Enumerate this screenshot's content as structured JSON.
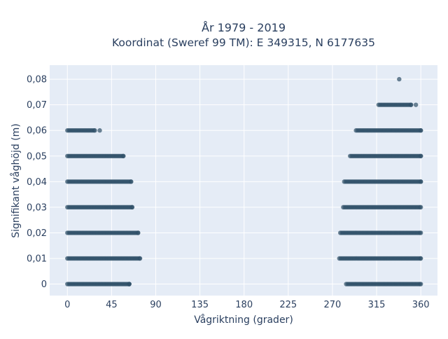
{
  "chart_data": {
    "type": "scatter",
    "title_line1": "År 1979 - 2019",
    "title_line2": "Koordinat (Sweref 99 TM): E 349315, N 6177635",
    "xlabel": "Vågriktning (grader)",
    "ylabel": "Signifikant våghöjd (m)",
    "xlim": [
      -18,
      377
    ],
    "ylim": [
      -0.0045,
      0.0855
    ],
    "x_ticks": [
      0,
      45,
      90,
      135,
      180,
      225,
      270,
      315,
      360
    ],
    "y_ticks": [
      0,
      0.01,
      0.02,
      0.03,
      0.04,
      0.05,
      0.06,
      0.07,
      0.08
    ],
    "y_tick_labels": [
      "0",
      "0,01",
      "0,02",
      "0,03",
      "0,04",
      "0,05",
      "0,06",
      "0,07",
      "0,08"
    ],
    "grid": true,
    "colors": {
      "plot_bg": "#e5ecf6",
      "grid": "#ffffff",
      "marker": "#2f5068"
    },
    "bands": [
      {
        "y": 0,
        "x_ranges": [
          [
            0,
            63
          ],
          [
            284,
            360
          ]
        ],
        "stray_points": [
          63
        ]
      },
      {
        "y": 0.01,
        "x_ranges": [
          [
            0,
            74
          ],
          [
            277,
            360
          ]
        ],
        "stray_points": []
      },
      {
        "y": 0.02,
        "x_ranges": [
          [
            0,
            72
          ],
          [
            278,
            360
          ]
        ],
        "stray_points": []
      },
      {
        "y": 0.03,
        "x_ranges": [
          [
            0,
            66
          ],
          [
            281,
            360
          ]
        ],
        "stray_points": []
      },
      {
        "y": 0.04,
        "x_ranges": [
          [
            0,
            65
          ],
          [
            282,
            360
          ]
        ],
        "stray_points": []
      },
      {
        "y": 0.05,
        "x_ranges": [
          [
            0,
            57
          ],
          [
            288,
            360
          ]
        ],
        "stray_points": []
      },
      {
        "y": 0.06,
        "x_ranges": [
          [
            0,
            28
          ],
          [
            294,
            360
          ]
        ],
        "stray_points": [
          33
        ]
      },
      {
        "y": 0.07,
        "x_ranges": [
          [
            317,
            350
          ]
        ],
        "stray_points": [
          355
        ]
      },
      {
        "y": 0.08,
        "x_ranges": [],
        "stray_points": [
          338
        ]
      }
    ]
  }
}
